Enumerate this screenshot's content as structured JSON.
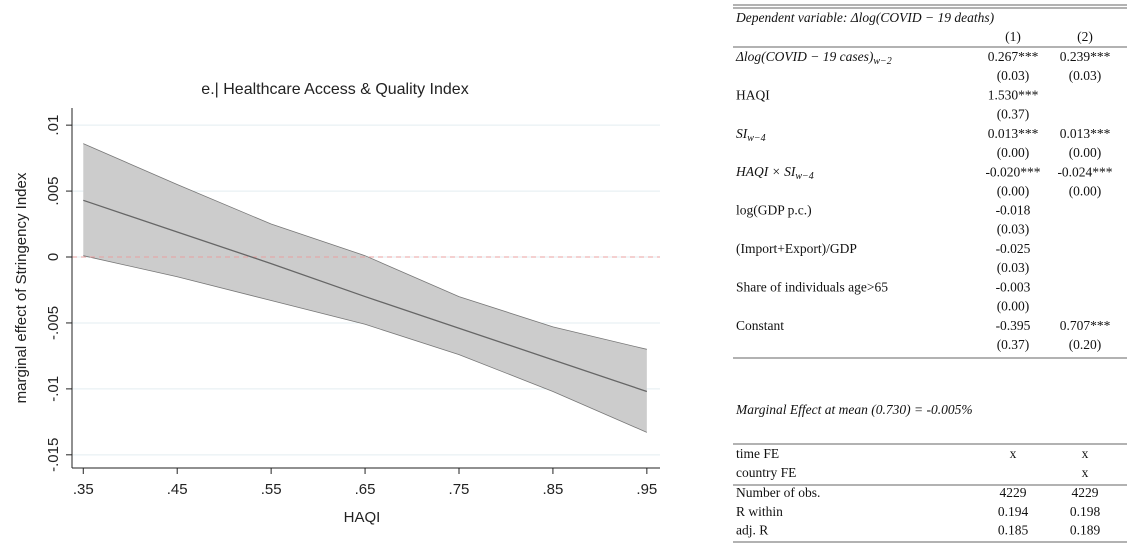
{
  "chart_data": {
    "type": "line",
    "title": "e.| Healthcare Access & Quality Index",
    "x_label": "HAQI",
    "y_label": "marginal effect of Stringency Index",
    "x": [
      0.35,
      0.45,
      0.55,
      0.65,
      0.75,
      0.85,
      0.95
    ],
    "series": [
      {
        "color": "#666666",
        "values": [
          0.0043,
          0.0019,
          -0.0005,
          -0.003,
          -0.0054,
          -0.0078,
          -0.0102
        ]
      }
    ],
    "band": {
      "color": "#cccccc",
      "edge_color": "#777777",
      "upper": [
        0.0086,
        0.0055,
        0.0025,
        0.0001,
        -0.003,
        -0.0053,
        -0.007
      ],
      "lower": [
        0.0001,
        -0.0015,
        -0.0033,
        -0.0051,
        -0.0074,
        -0.0102,
        -0.0133
      ]
    },
    "reference_line": {
      "value": 0,
      "color": "#e8a0a0"
    },
    "xlim": [
      0.338,
      0.964
    ],
    "ylim": [
      -0.016,
      0.0113
    ],
    "xticks": [
      {
        "value": 0.35,
        "label": ".35"
      },
      {
        "value": 0.45,
        "label": ".45"
      },
      {
        "value": 0.55,
        "label": ".55"
      },
      {
        "value": 0.65,
        "label": ".65"
      },
      {
        "value": 0.75,
        "label": ".75"
      },
      {
        "value": 0.85,
        "label": ".85"
      },
      {
        "value": 0.95,
        "label": ".95"
      }
    ],
    "yticks": [
      {
        "value": -0.015,
        "label": "-.015"
      },
      {
        "value": -0.01,
        "label": "-.01"
      },
      {
        "value": -0.005,
        "label": "-.005"
      },
      0,
      {
        "value": 0.005,
        "label": ".005"
      },
      {
        "value": 0.01,
        "label": ".01"
      }
    ],
    "grid": true,
    "grid_color": "#e3eef0"
  },
  "table": {
    "header": "Dependent variable: Δlog(COVID − 19 deaths)",
    "columns": [
      "(1)",
      "(2)"
    ],
    "rows": [
      {
        "label": "Δlog(COVID − 19 cases)",
        "sub": "w−2",
        "values": [
          "0.267***",
          "0.239***"
        ],
        "se": [
          "(0.03)",
          "(0.03)"
        ]
      },
      {
        "label": "HAQI",
        "values": [
          "1.530***",
          null
        ],
        "se": [
          "(0.37)",
          null
        ]
      },
      {
        "label": "SI",
        "sub": "w−4",
        "values": [
          "0.013***",
          "0.013***"
        ],
        "se": [
          "(0.00)",
          "(0.00)"
        ]
      },
      {
        "label": "HAQI × SI",
        "sub": "w−4",
        "values": [
          "-0.020***",
          "-0.024***"
        ],
        "se": [
          "(0.00)",
          "(0.00)"
        ]
      },
      {
        "label": "log(GDP p.c.)",
        "values": [
          "-0.018",
          null
        ],
        "se": [
          "(0.03)",
          null
        ]
      },
      {
        "label": "(Import+Export)/GDP",
        "values": [
          "-0.025",
          null
        ],
        "se": [
          "(0.03)",
          null
        ]
      },
      {
        "label": "Share of individuals age>65",
        "values": [
          "-0.003",
          null
        ],
        "se": [
          "(0.00)",
          null
        ]
      },
      {
        "label": "Constant",
        "values": [
          "-0.395",
          "0.707***"
        ],
        "se": [
          "(0.37)",
          "(0.20)"
        ]
      }
    ],
    "note": "Marginal Effect at mean (0.730) = -0.005%",
    "fixed_effects": [
      [
        "time FE",
        "x",
        "x"
      ],
      [
        "country FE",
        null,
        "x"
      ]
    ],
    "stats": [
      [
        "Number of obs.",
        "4229",
        "4229"
      ],
      [
        "R within",
        "0.194",
        "0.198"
      ],
      [
        "adj. R",
        "0.185",
        "0.189"
      ]
    ]
  }
}
